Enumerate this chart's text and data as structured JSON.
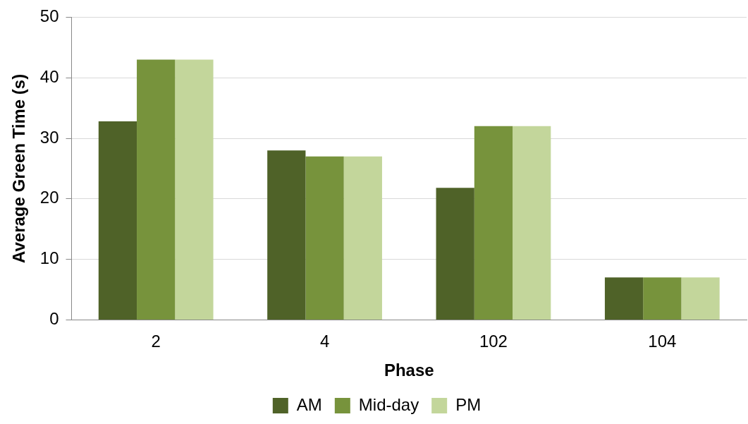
{
  "chart_data": {
    "type": "bar",
    "xlabel": "Phase",
    "ylabel": "Average Green Time (s)",
    "categories": [
      "2",
      "4",
      "102",
      "104"
    ],
    "series": [
      {
        "name": "AM",
        "color": "#4f6228",
        "values": [
          32.8,
          28,
          21.8,
          7
        ]
      },
      {
        "name": "Mid-day",
        "color": "#77933c",
        "values": [
          43,
          27,
          32,
          7
        ]
      },
      {
        "name": "PM",
        "color": "#c3d69b",
        "values": [
          43,
          27,
          32,
          7
        ]
      }
    ],
    "ylim": [
      0,
      50
    ],
    "yticks": [
      0,
      10,
      20,
      30,
      40,
      50
    ],
    "grid": "y",
    "legend": "bottom"
  }
}
